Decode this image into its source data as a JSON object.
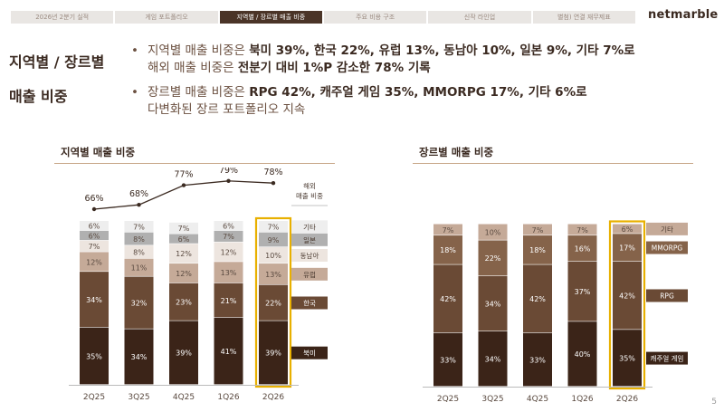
{
  "tabs": [
    {
      "label": "2026년 2분기 실적",
      "active": false
    },
    {
      "label": "게임 포트폴리오",
      "active": false
    },
    {
      "label": "지역별 / 장르별 매출 비중",
      "active": true
    },
    {
      "label": "주요 비용 구조",
      "active": false
    },
    {
      "label": "신작 라인업",
      "active": false
    },
    {
      "label": "별첨) 연결 재무제표",
      "active": false
    }
  ],
  "logo": "netmarble",
  "title_line1": "지역별 / 장르별",
  "title_line2": "매출 비중",
  "bullet1": {
    "prefix": "지역별 매출 비중은 ",
    "bold": "북미 39%, 한국 22%, 유럽 13%, 동남아 10%, 일본 9%, 기타 7%로",
    "line2_prefix": "해외 매출 비중은 ",
    "line2_bold": "전분기 대비 1%P 감소한 78% 기록"
  },
  "bullet2": {
    "prefix": "장르별 매출 비중은 ",
    "bold": "RPG 42%, 캐주얼 게임 35%, MMORPG 17%, 기타 6%로",
    "line2": "다변화된 장르 포트폴리오 지속"
  },
  "bullet_glyph": "•",
  "page_number": "5",
  "chart_data": [
    {
      "type": "bar",
      "stacked": true,
      "title": "지역별 매출 비중",
      "categories": [
        "2Q25",
        "3Q25",
        "4Q25",
        "1Q26",
        "2Q26"
      ],
      "highlight_category": "2Q26",
      "series": [
        {
          "name": "북미",
          "color": "#3b2418",
          "values": [
            35,
            34,
            39,
            41,
            39
          ]
        },
        {
          "name": "한국",
          "color": "#6a4a35",
          "values": [
            34,
            32,
            23,
            21,
            22
          ]
        },
        {
          "name": "유럽",
          "color": "#c5aa98",
          "values": [
            12,
            11,
            12,
            13,
            13
          ]
        },
        {
          "name": "동남아",
          "color": "#ede5df",
          "values": [
            7,
            8,
            12,
            12,
            10
          ]
        },
        {
          "name": "일본",
          "color": "#b0b0b0",
          "values": [
            6,
            8,
            6,
            7,
            9
          ]
        },
        {
          "name": "기타",
          "color": "#eeeeee",
          "values": [
            6,
            7,
            7,
            6,
            7
          ]
        }
      ],
      "line_series": {
        "name": "해외 매출 비중",
        "values": [
          66,
          68,
          77,
          79,
          78
        ]
      },
      "line_legend": "해외\n매출 비중"
    },
    {
      "type": "bar",
      "stacked": true,
      "title": "장르별 매출 비중",
      "categories": [
        "2Q25",
        "3Q25",
        "4Q25",
        "1Q26",
        "2Q26"
      ],
      "highlight_category": "2Q26",
      "series": [
        {
          "name": "캐주얼 게임",
          "color": "#3b2418",
          "values": [
            33,
            34,
            33,
            40,
            35
          ]
        },
        {
          "name": "RPG",
          "color": "#6a4a35",
          "values": [
            42,
            34,
            42,
            37,
            42
          ]
        },
        {
          "name": "MMORPG",
          "color": "#85634a",
          "values": [
            18,
            22,
            18,
            16,
            17
          ]
        },
        {
          "name": "기타",
          "color": "#c5aa98",
          "values": [
            7,
            10,
            7,
            7,
            6
          ]
        }
      ]
    }
  ]
}
